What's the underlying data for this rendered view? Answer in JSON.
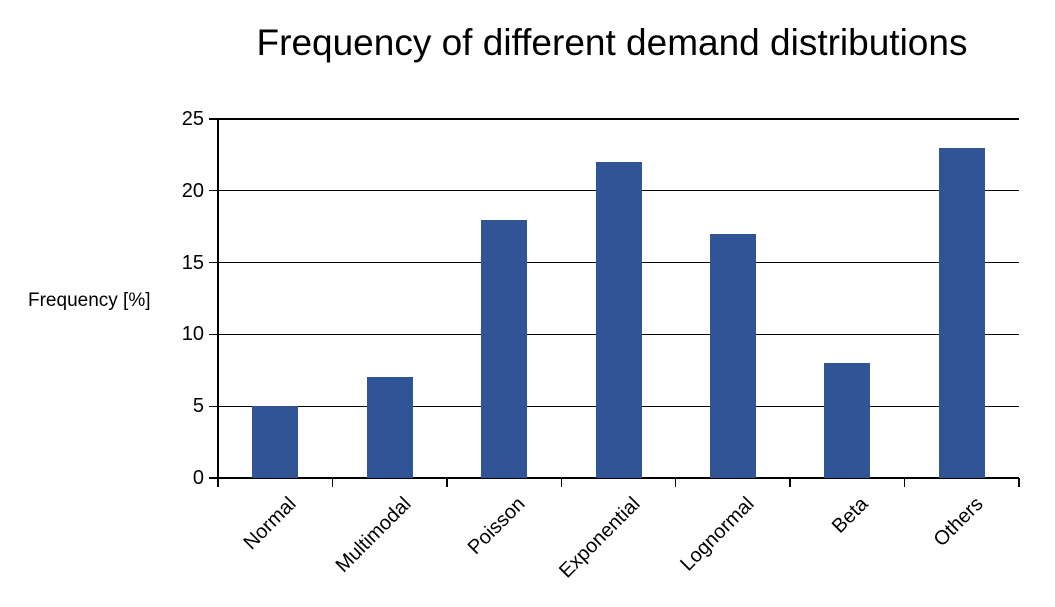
{
  "chart_data": {
    "type": "bar",
    "title": "Frequency of different demand distributions",
    "categories": [
      "Normal",
      "Multimodal",
      "Poisson",
      "Exponential",
      "Lognormal",
      "Beta",
      "Others"
    ],
    "values": [
      5,
      7,
      18,
      22,
      17,
      8,
      23
    ],
    "xlabel": "",
    "ylabel": "Frequency [%]",
    "ylim": [
      0,
      25
    ],
    "yticks": [
      0,
      5,
      10,
      15,
      20,
      25
    ],
    "grid": true,
    "legend": "none",
    "bar_color": "#305496",
    "axis_color": "#000000",
    "background_color": "#ffffff"
  }
}
